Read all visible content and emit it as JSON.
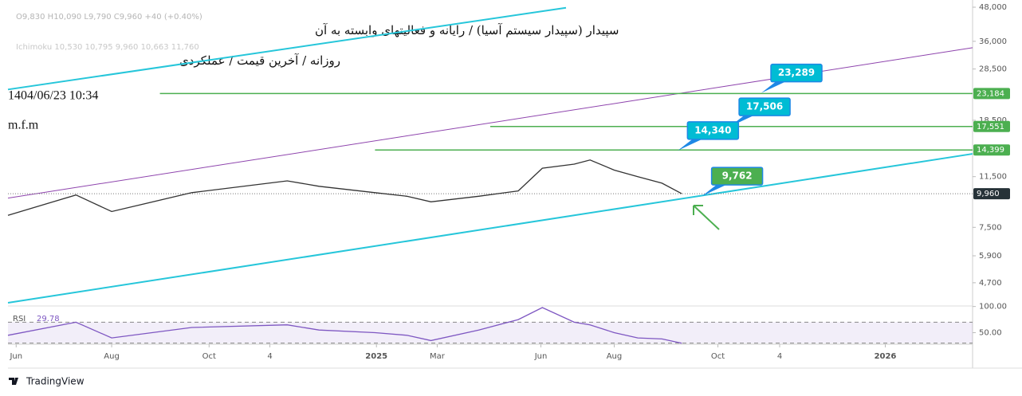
{
  "header": {
    "title": "سپیدار (سپیدار سیستم آسیا) / رایانه و فعالیتهای وابسته به آن",
    "subtitle": "روزانه / آخرین قیمت / عملکردی",
    "datetime": "1404/06/23 10:34",
    "author": "m.f.m",
    "ohlc": "O9,830 H10,090 L9,790 C9,960 +40 (+0.40%)",
    "ichimoku": "Ichimoku 10,530 10,795 9,960 10,663 11,760",
    "brand": "TradingView"
  },
  "chart_data": [
    {
      "type": "line",
      "log_scale": true,
      "grid": false,
      "xlim": [
        -0.17,
        19.83
      ],
      "xticks": [
        {
          "value": 0,
          "label": "Jun"
        },
        {
          "value": 1.98,
          "label": "Aug"
        },
        {
          "value": 4.0,
          "label": "Oct"
        },
        {
          "value": 5.26,
          "label": "4"
        },
        {
          "value": 7.47,
          "label": "2025"
        },
        {
          "value": 8.73,
          "label": "Mar"
        },
        {
          "value": 10.88,
          "label": "Jun"
        },
        {
          "value": 12.4,
          "label": "Aug"
        },
        {
          "value": 14.55,
          "label": "Oct"
        },
        {
          "value": 15.83,
          "label": "4"
        },
        {
          "value": 18.02,
          "label": "2026"
        }
      ],
      "ylim": [
        3970,
        51000
      ],
      "yticks": [
        {
          "value": 48000,
          "label": "48,000"
        },
        {
          "value": 36000,
          "label": "36,000"
        },
        {
          "value": 28500,
          "label": "28,500"
        },
        {
          "value": 18500,
          "label": "18,500"
        },
        {
          "value": 11500,
          "label": "11,500"
        },
        {
          "value": 7500,
          "label": "7,500"
        },
        {
          "value": 5900,
          "label": "5,900"
        },
        {
          "value": 4700,
          "label": "4,700"
        }
      ],
      "x": [
        -0.17,
        1.24,
        1.98,
        3.64,
        5.62,
        6.28,
        7.44,
        8.1,
        8.6,
        9.59,
        10.41,
        10.91,
        11.57,
        11.9,
        12.4,
        12.89,
        13.39,
        13.8
      ],
      "series": [
        {
          "color": "#333333",
          "values": [
            8300,
            9850,
            8570,
            10050,
            11100,
            10600,
            10050,
            9750,
            9300,
            9750,
            10200,
            12350,
            12780,
            13230,
            12150,
            11500,
            10880,
            9960
          ]
        }
      ],
      "last_price": {
        "value": 9960,
        "label": "9,960",
        "color": "#263238"
      },
      "trendlines": [
        {
          "color": "#26c6da",
          "x": [
            -0.17,
            19.83
          ],
          "values": [
            3970,
            13940
          ]
        },
        {
          "color": "#26c6da",
          "x": [
            -0.17,
            11.4
          ],
          "values": [
            23980,
            47750
          ]
        },
        {
          "color": "#8e44ad",
          "x": [
            -0.17,
            19.83
          ],
          "values": [
            9600,
            34100
          ]
        }
      ],
      "levels": [
        {
          "value": 23184,
          "label": "23,184",
          "x_start": 2.98,
          "color": "#4caf50"
        },
        {
          "value": 17551,
          "label": "17,551",
          "x_start": 9.83,
          "color": "#4caf50"
        },
        {
          "value": 14399,
          "label": "14,399",
          "x_start": 7.44,
          "color": "#4caf50"
        }
      ],
      "callouts": [
        {
          "value": 23289,
          "label": "23,289",
          "x": 15.45,
          "color": "#00bcd4"
        },
        {
          "value": 17506,
          "label": "17,506",
          "x": 14.79,
          "color": "#00bcd4"
        },
        {
          "value": 14340,
          "label": "14,340",
          "x": 13.72,
          "color": "#00bcd4"
        },
        {
          "value": 9762,
          "label": "9,762",
          "x": 14.22,
          "color": "#4caf50"
        }
      ]
    },
    {
      "type": "line",
      "title": "RSI",
      "xlim": [
        -0.17,
        19.83
      ],
      "ylim": [
        28,
        101
      ],
      "yticks": [
        {
          "value": 100,
          "label": "100.00"
        },
        {
          "value": 50,
          "label": "50.00"
        }
      ],
      "bands": [
        30,
        70
      ],
      "x": [
        -0.17,
        1.24,
        1.98,
        3.64,
        5.62,
        6.28,
        7.44,
        8.1,
        8.6,
        9.59,
        10.41,
        10.91,
        11.57,
        11.9,
        12.4,
        12.89,
        13.39,
        13.8
      ],
      "series": [
        {
          "color": "#7e57c2",
          "values": [
            45,
            70,
            40,
            60,
            65,
            55,
            50,
            45,
            35,
            55,
            75,
            98,
            70,
            65,
            50,
            40,
            38,
            29.78
          ],
          "value_labels": [
            null,
            null,
            null,
            null,
            null,
            null,
            null,
            null,
            null,
            null,
            null,
            null,
            null,
            null,
            null,
            null,
            null,
            "29.78"
          ]
        }
      ]
    }
  ]
}
